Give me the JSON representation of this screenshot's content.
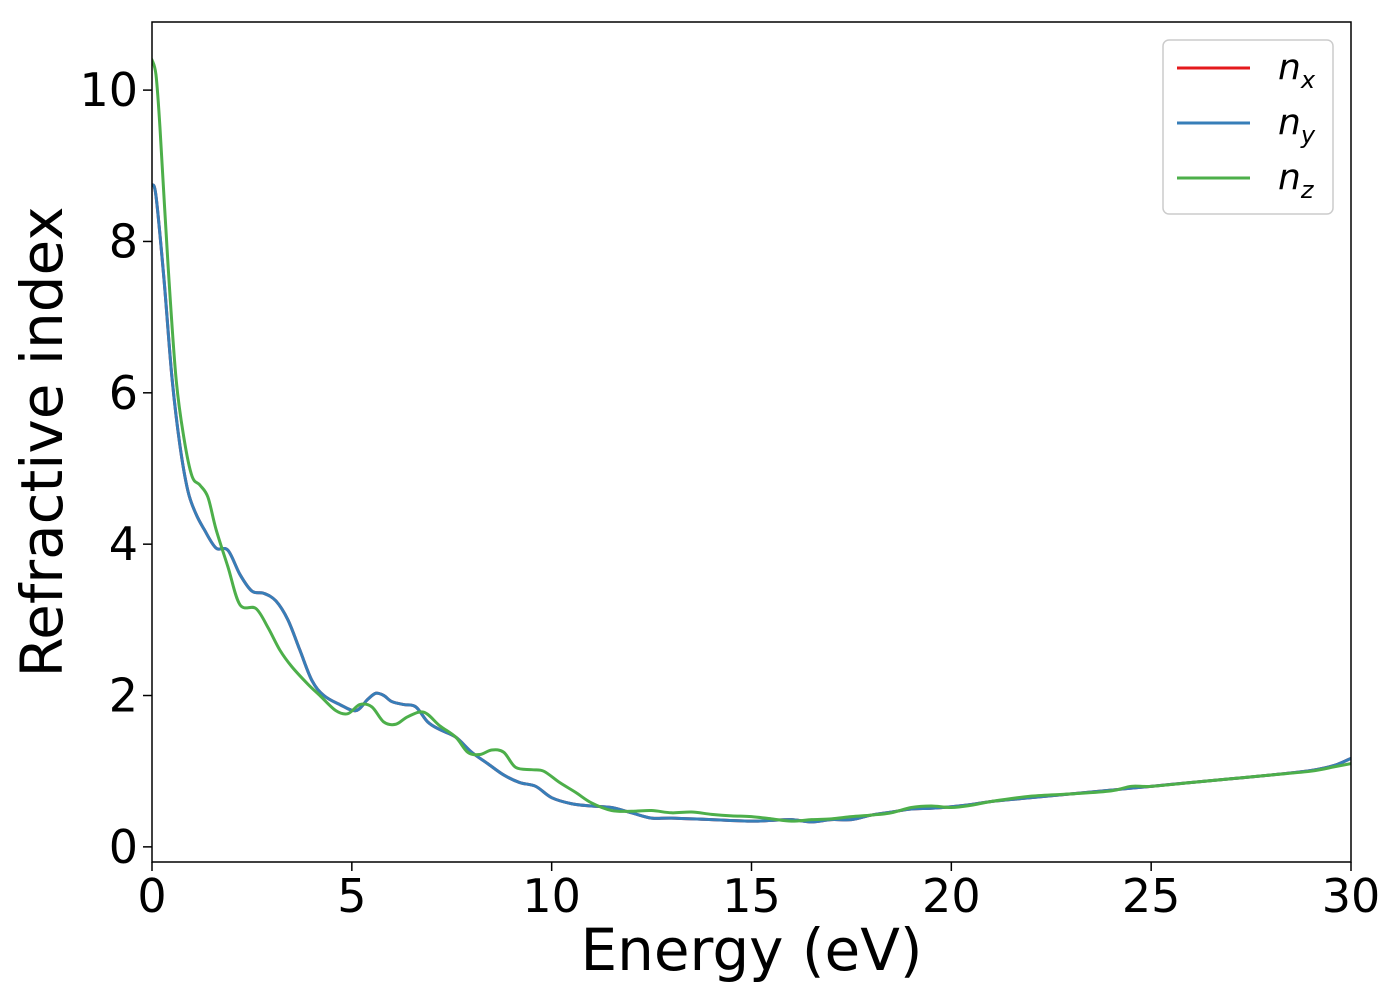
{
  "chart_data": {
    "type": "line",
    "xlabel": "Energy (eV)",
    "ylabel": "Refractive index",
    "xlim": [
      0,
      30
    ],
    "ylim": [
      -0.2,
      10.9
    ],
    "xticks": [
      0,
      5,
      10,
      15,
      20,
      25,
      30
    ],
    "yticks": [
      0,
      2,
      4,
      6,
      8,
      10
    ],
    "xtick_labels": [
      "0",
      "5",
      "10",
      "15",
      "20",
      "25",
      "30"
    ],
    "ytick_labels": [
      "0",
      "2",
      "4",
      "6",
      "8",
      "10"
    ],
    "grid": false,
    "legend_position": "top-right",
    "series": [
      {
        "name": "n_x",
        "legend_base": "n",
        "legend_sub": "x",
        "color": "#e41a1c",
        "x": [
          0,
          0.1,
          0.3,
          0.5,
          0.7,
          0.9,
          1.1,
          1.3,
          1.6,
          1.9,
          2.2,
          2.5,
          2.8,
          3.1,
          3.4,
          3.7,
          4.0,
          4.3,
          4.7,
          5.1,
          5.4,
          5.6,
          5.8,
          6.0,
          6.3,
          6.6,
          6.9,
          7.2,
          7.6,
          8.0,
          8.4,
          8.8,
          9.2,
          9.6,
          10.0,
          10.5,
          11.0,
          11.5,
          12.0,
          12.5,
          13.0,
          14.0,
          15.0,
          15.5,
          16.0,
          16.5,
          17.0,
          17.5,
          18.0,
          18.5,
          19.0,
          19.5,
          20.0,
          20.5,
          21.0,
          22.0,
          23.0,
          24.0,
          25.0,
          26.0,
          27.0,
          28.0,
          29.0,
          29.6,
          30.0
        ],
        "values": [
          8.75,
          8.6,
          7.5,
          6.2,
          5.3,
          4.7,
          4.4,
          4.2,
          3.95,
          3.92,
          3.6,
          3.38,
          3.35,
          3.25,
          3.0,
          2.6,
          2.2,
          2.0,
          1.88,
          1.8,
          1.95,
          2.03,
          2.0,
          1.92,
          1.88,
          1.85,
          1.65,
          1.55,
          1.45,
          1.25,
          1.1,
          0.95,
          0.85,
          0.8,
          0.65,
          0.57,
          0.54,
          0.52,
          0.45,
          0.38,
          0.38,
          0.36,
          0.34,
          0.35,
          0.36,
          0.33,
          0.36,
          0.36,
          0.42,
          0.46,
          0.5,
          0.51,
          0.53,
          0.56,
          0.6,
          0.65,
          0.7,
          0.75,
          0.8,
          0.85,
          0.9,
          0.95,
          1.01,
          1.08,
          1.17
        ]
      },
      {
        "name": "n_y",
        "legend_base": "n",
        "legend_sub": "y",
        "color": "#377eb8",
        "x": [
          0,
          0.1,
          0.3,
          0.5,
          0.7,
          0.9,
          1.1,
          1.3,
          1.6,
          1.9,
          2.2,
          2.5,
          2.8,
          3.1,
          3.4,
          3.7,
          4.0,
          4.3,
          4.7,
          5.1,
          5.4,
          5.6,
          5.8,
          6.0,
          6.3,
          6.6,
          6.9,
          7.2,
          7.6,
          8.0,
          8.4,
          8.8,
          9.2,
          9.6,
          10.0,
          10.5,
          11.0,
          11.5,
          12.0,
          12.5,
          13.0,
          14.0,
          15.0,
          15.5,
          16.0,
          16.5,
          17.0,
          17.5,
          18.0,
          18.5,
          19.0,
          19.5,
          20.0,
          20.5,
          21.0,
          22.0,
          23.0,
          24.0,
          25.0,
          26.0,
          27.0,
          28.0,
          29.0,
          29.6,
          30.0
        ],
        "values": [
          8.75,
          8.6,
          7.5,
          6.2,
          5.3,
          4.7,
          4.4,
          4.2,
          3.95,
          3.92,
          3.6,
          3.38,
          3.35,
          3.25,
          3.0,
          2.6,
          2.2,
          2.0,
          1.88,
          1.8,
          1.95,
          2.03,
          2.0,
          1.92,
          1.88,
          1.85,
          1.65,
          1.55,
          1.45,
          1.25,
          1.1,
          0.95,
          0.85,
          0.8,
          0.65,
          0.57,
          0.54,
          0.52,
          0.45,
          0.38,
          0.38,
          0.36,
          0.34,
          0.35,
          0.36,
          0.33,
          0.36,
          0.36,
          0.42,
          0.46,
          0.5,
          0.51,
          0.53,
          0.56,
          0.6,
          0.65,
          0.7,
          0.75,
          0.8,
          0.85,
          0.9,
          0.95,
          1.01,
          1.08,
          1.17
        ]
      },
      {
        "name": "n_z",
        "legend_base": "n",
        "legend_sub": "z",
        "color": "#4daf4a",
        "x": [
          0,
          0.1,
          0.2,
          0.4,
          0.6,
          0.8,
          1.0,
          1.2,
          1.4,
          1.6,
          1.9,
          2.2,
          2.6,
          2.9,
          3.2,
          3.5,
          3.9,
          4.2,
          4.6,
          4.9,
          5.2,
          5.5,
          5.8,
          6.1,
          6.4,
          6.8,
          7.2,
          7.6,
          7.9,
          8.2,
          8.5,
          8.8,
          9.1,
          9.5,
          9.8,
          10.2,
          10.6,
          11.0,
          11.5,
          12.0,
          12.5,
          13.0,
          13.5,
          14.0,
          14.5,
          15.0,
          15.5,
          16.0,
          16.5,
          17.0,
          17.5,
          18.0,
          18.5,
          19.0,
          19.5,
          20.0,
          20.5,
          21.0,
          22.0,
          23.0,
          24.0,
          24.5,
          25.0,
          26.0,
          27.0,
          28.0,
          29.0,
          29.6,
          30.0
        ],
        "values": [
          10.4,
          10.2,
          9.5,
          7.7,
          6.2,
          5.4,
          4.9,
          4.78,
          4.62,
          4.2,
          3.7,
          3.2,
          3.15,
          2.9,
          2.6,
          2.38,
          2.15,
          2.0,
          1.8,
          1.76,
          1.88,
          1.85,
          1.65,
          1.62,
          1.72,
          1.78,
          1.6,
          1.45,
          1.25,
          1.22,
          1.28,
          1.25,
          1.05,
          1.02,
          1.0,
          0.85,
          0.72,
          0.58,
          0.48,
          0.47,
          0.48,
          0.45,
          0.46,
          0.43,
          0.41,
          0.4,
          0.37,
          0.34,
          0.36,
          0.37,
          0.4,
          0.42,
          0.45,
          0.52,
          0.54,
          0.52,
          0.55,
          0.6,
          0.67,
          0.7,
          0.74,
          0.8,
          0.8,
          0.85,
          0.9,
          0.95,
          1.0,
          1.06,
          1.1
        ]
      }
    ]
  }
}
